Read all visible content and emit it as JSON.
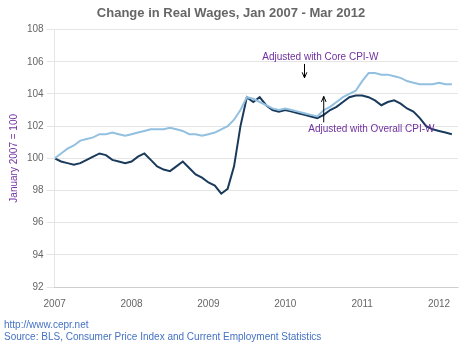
{
  "chart_data": {
    "type": "line",
    "title": "Change in Real Wages, Jan 2007 - Mar 2012",
    "ylabel": "January 2007 = 100",
    "ylabel_color": "#7030a0",
    "footer": [
      "http://www.cepr.net",
      "Source: BLS, Consumer Price Index and Current Employment Statistics"
    ],
    "footer_color": "#4472c4",
    "x": [
      2007,
      2007.0833,
      2007.1667,
      2007.25,
      2007.3333,
      2007.4167,
      2007.5,
      2007.5833,
      2007.6667,
      2007.75,
      2007.8333,
      2007.9167,
      2008,
      2008.0833,
      2008.1667,
      2008.25,
      2008.3333,
      2008.4167,
      2008.5,
      2008.5833,
      2008.6667,
      2008.75,
      2008.8333,
      2008.9167,
      2009,
      2009.0833,
      2009.1667,
      2009.25,
      2009.3333,
      2009.4167,
      2009.5,
      2009.5833,
      2009.6667,
      2009.75,
      2009.8333,
      2009.9167,
      2010,
      2010.0833,
      2010.1667,
      2010.25,
      2010.3333,
      2010.4167,
      2010.5,
      2010.5833,
      2010.6667,
      2010.75,
      2010.8333,
      2010.9167,
      2011,
      2011.0833,
      2011.1667,
      2011.25,
      2011.3333,
      2011.4167,
      2011.5,
      2011.5833,
      2011.6667,
      2011.75,
      2011.8333,
      2011.9167,
      2012,
      2012.0833,
      2012.1667
    ],
    "series": [
      {
        "color": "#92c0e0",
        "values": [
          100.0,
          100.3,
          100.6,
          100.8,
          101.1,
          101.2,
          101.3,
          101.5,
          101.5,
          101.6,
          101.5,
          101.4,
          101.5,
          101.6,
          101.7,
          101.8,
          101.8,
          101.8,
          101.9,
          101.8,
          101.7,
          101.5,
          101.5,
          101.4,
          101.5,
          101.6,
          101.8,
          102.0,
          102.4,
          103.0,
          103.8,
          103.7,
          103.5,
          103.3,
          103.1,
          103.0,
          103.1,
          103.0,
          102.9,
          102.8,
          102.7,
          102.6,
          103.0,
          103.2,
          103.5,
          103.8,
          104.0,
          104.2,
          104.8,
          105.3,
          105.3,
          105.2,
          105.2,
          105.1,
          105.0,
          104.8,
          104.7,
          104.6,
          104.6,
          104.6,
          104.7,
          104.6,
          104.6
        ]
      },
      {
        "color": "#1a3a5c",
        "values": [
          100.0,
          99.8,
          99.7,
          99.6,
          99.7,
          99.9,
          100.1,
          100.3,
          100.2,
          99.9,
          99.8,
          99.7,
          99.8,
          100.1,
          100.3,
          99.9,
          99.5,
          99.3,
          99.2,
          99.5,
          99.8,
          99.4,
          99.0,
          98.8,
          98.5,
          98.3,
          97.8,
          98.1,
          99.5,
          102.0,
          103.8,
          103.5,
          103.8,
          103.3,
          103.0,
          102.9,
          103.0,
          102.9,
          102.8,
          102.7,
          102.6,
          102.5,
          102.7,
          103.0,
          103.2,
          103.5,
          103.8,
          103.9,
          103.9,
          103.8,
          103.6,
          103.3,
          103.5,
          103.6,
          103.4,
          103.1,
          102.9,
          102.5,
          102.0,
          101.8,
          101.7,
          101.6,
          101.5
        ]
      }
    ],
    "xlim": [
      2007,
      2012.2467
    ],
    "xticks": [
      2007,
      2008,
      2009,
      2010,
      2011,
      2012
    ],
    "ylim": [
      92,
      108
    ],
    "yticks": [
      92,
      94,
      96,
      98,
      100,
      102,
      104,
      106,
      108
    ],
    "grid": true,
    "annotations": [
      {
        "text": "Adjusted with Core CPI-W",
        "x": 2009.7,
        "y": 106.3,
        "arrow_x": 2010.25,
        "arrow_y": 105.0,
        "color": "#7030a0"
      },
      {
        "text": "Adjusted with Overall CPI-W",
        "x": 2010.3,
        "y": 101.8,
        "arrow_x": 2010.5,
        "arrow_y": 103.85,
        "color": "#7030a0"
      }
    ]
  }
}
